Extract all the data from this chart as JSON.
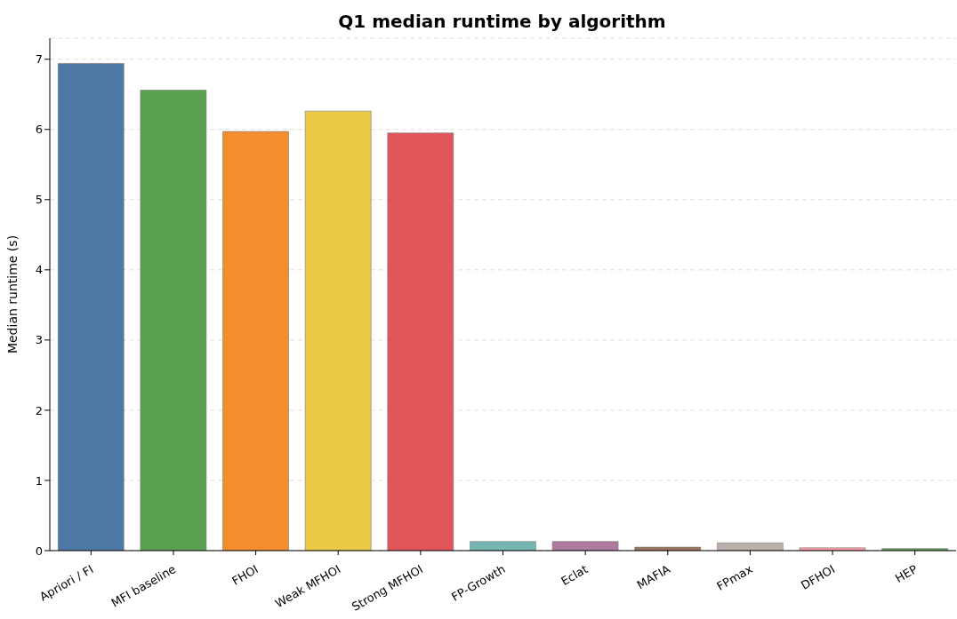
{
  "chart_data": {
    "type": "bar",
    "title": "Q1 median runtime by algorithm",
    "ylabel": "Median runtime (s)",
    "categories": [
      "Apriori / FI",
      "MFI baseline",
      "FHOI",
      "Weak MFHOI",
      "Strong MFHOI",
      "FP-Growth",
      "Eclat",
      "MAFIA",
      "FPmax",
      "DFHOI",
      "HEP"
    ],
    "values": [
      6.94,
      6.56,
      5.97,
      6.26,
      5.95,
      0.13,
      0.13,
      0.05,
      0.11,
      0.04,
      0.03
    ],
    "colors": [
      "#4e79a7",
      "#59a14f",
      "#f28e2b",
      "#edc948",
      "#e15759",
      "#76b7b2",
      "#b07aa1",
      "#9c755f",
      "#bab0ac",
      "#ff9da7",
      "#5fa35a"
    ],
    "ylim": [
      0,
      7.3
    ],
    "yticks": [
      0,
      1,
      2,
      3,
      4,
      5,
      6,
      7
    ],
    "grid": "y"
  }
}
